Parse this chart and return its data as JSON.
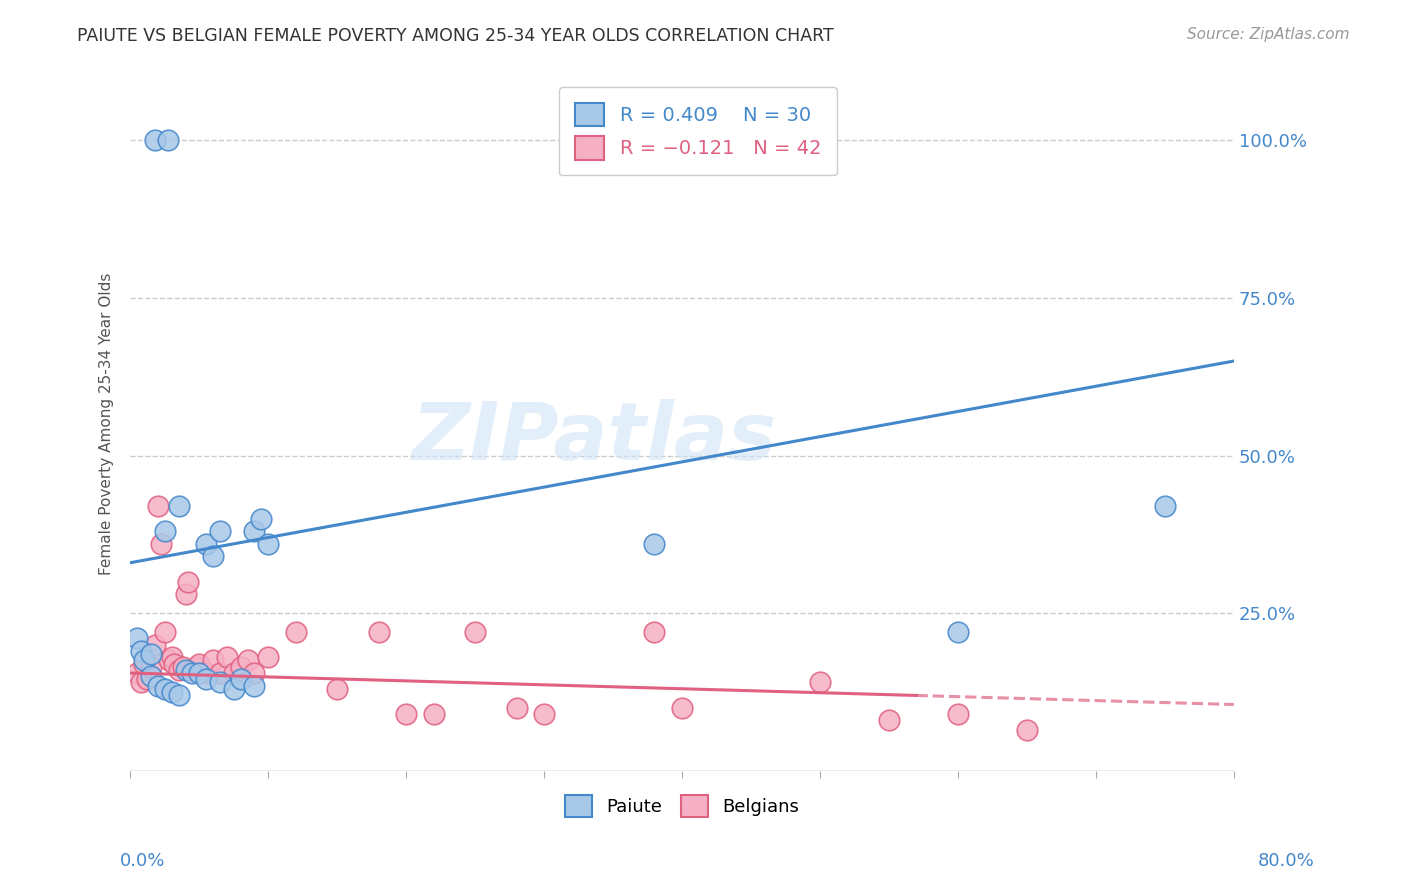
{
  "title": "PAIUTE VS BELGIAN FEMALE POVERTY AMONG 25-34 YEAR OLDS CORRELATION CHART",
  "source": "Source: ZipAtlas.com",
  "ylabel": "Female Poverty Among 25-34 Year Olds",
  "ytick_labels": [
    "100.0%",
    "75.0%",
    "50.0%",
    "25.0%"
  ],
  "ytick_values": [
    1.0,
    0.75,
    0.5,
    0.25
  ],
  "xlim": [
    0.0,
    0.8
  ],
  "ylim": [
    0.0,
    1.1
  ],
  "paiute_color": "#a8c8e8",
  "paiute_line_color": "#4488cc",
  "belgian_color": "#f5b0c5",
  "belgian_line_color": "#e06080",
  "watermark_color": "#d0e4f5",
  "background_color": "#ffffff",
  "grid_color": "#cccccc",
  "paiute_line_x0": 0.0,
  "paiute_line_y0": 0.33,
  "paiute_line_x1": 0.8,
  "paiute_line_y1": 0.65,
  "belgian_line_x0": 0.0,
  "belgian_line_y0": 0.155,
  "belgian_line_solid_x1": 0.57,
  "belgian_line_dash_x1": 0.8,
  "belgian_line_y1": 0.105,
  "paiute_scatter_x": [
    0.018,
    0.027,
    0.005,
    0.008,
    0.025,
    0.035,
    0.01,
    0.015,
    0.04,
    0.045,
    0.055,
    0.06,
    0.065,
    0.09,
    0.095,
    0.015,
    0.02,
    0.025,
    0.03,
    0.035,
    0.05,
    0.055,
    0.065,
    0.075,
    0.08,
    0.09,
    0.1,
    0.38,
    0.6,
    0.75
  ],
  "paiute_scatter_y": [
    1.0,
    1.0,
    0.21,
    0.19,
    0.38,
    0.42,
    0.175,
    0.185,
    0.16,
    0.155,
    0.36,
    0.34,
    0.38,
    0.38,
    0.4,
    0.15,
    0.135,
    0.13,
    0.125,
    0.12,
    0.155,
    0.145,
    0.14,
    0.13,
    0.145,
    0.135,
    0.36,
    0.36,
    0.22,
    0.42
  ],
  "belgian_scatter_x": [
    0.005,
    0.008,
    0.01,
    0.012,
    0.015,
    0.018,
    0.02,
    0.022,
    0.025,
    0.028,
    0.03,
    0.032,
    0.035,
    0.038,
    0.04,
    0.042,
    0.045,
    0.048,
    0.05,
    0.055,
    0.06,
    0.065,
    0.07,
    0.075,
    0.08,
    0.085,
    0.09,
    0.1,
    0.12,
    0.15,
    0.18,
    0.2,
    0.22,
    0.25,
    0.28,
    0.3,
    0.38,
    0.4,
    0.5,
    0.55,
    0.6,
    0.65
  ],
  "belgian_scatter_y": [
    0.155,
    0.14,
    0.17,
    0.145,
    0.165,
    0.2,
    0.42,
    0.36,
    0.22,
    0.175,
    0.18,
    0.17,
    0.16,
    0.165,
    0.28,
    0.3,
    0.16,
    0.165,
    0.17,
    0.155,
    0.175,
    0.155,
    0.18,
    0.155,
    0.165,
    0.175,
    0.155,
    0.18,
    0.22,
    0.13,
    0.22,
    0.09,
    0.09,
    0.22,
    0.1,
    0.09,
    0.22,
    0.1,
    0.14,
    0.08,
    0.09,
    0.065
  ]
}
